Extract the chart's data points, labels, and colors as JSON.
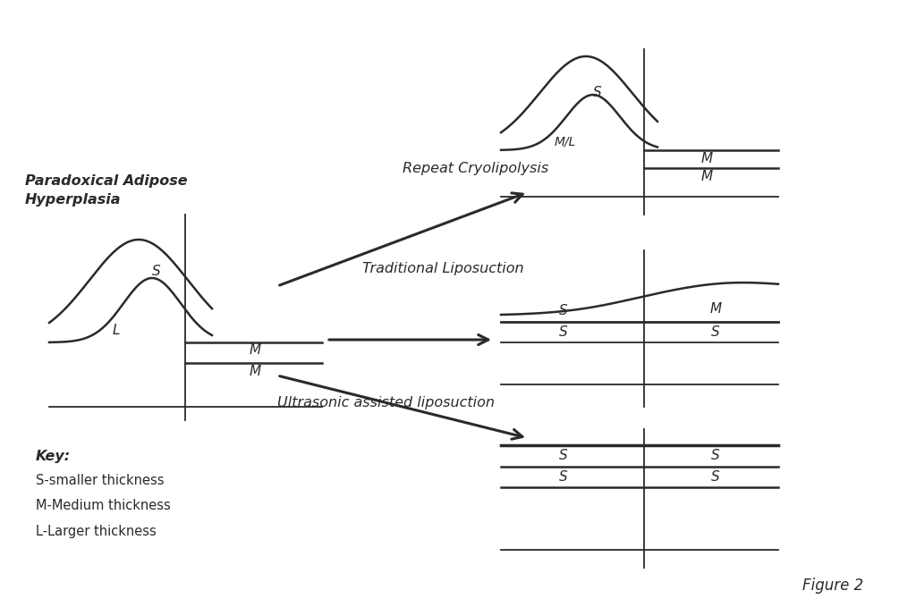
{
  "figure_label": "Figure 2",
  "background_color": "#ffffff",
  "line_color": "#2a2a2a",
  "text_color": "#2a2a2a",
  "key_text": [
    "Key:",
    "S-smaller thickness",
    "M-Medium thickness",
    "L-Larger thickness"
  ],
  "labels": {
    "pah": "Paradoxical Adipose\nHyperplasia",
    "repeat": "Repeat Cryolipolysis",
    "trad": "Traditional Liposuction",
    "ultrasonic": "Ultrasonic assisted liposuction"
  }
}
